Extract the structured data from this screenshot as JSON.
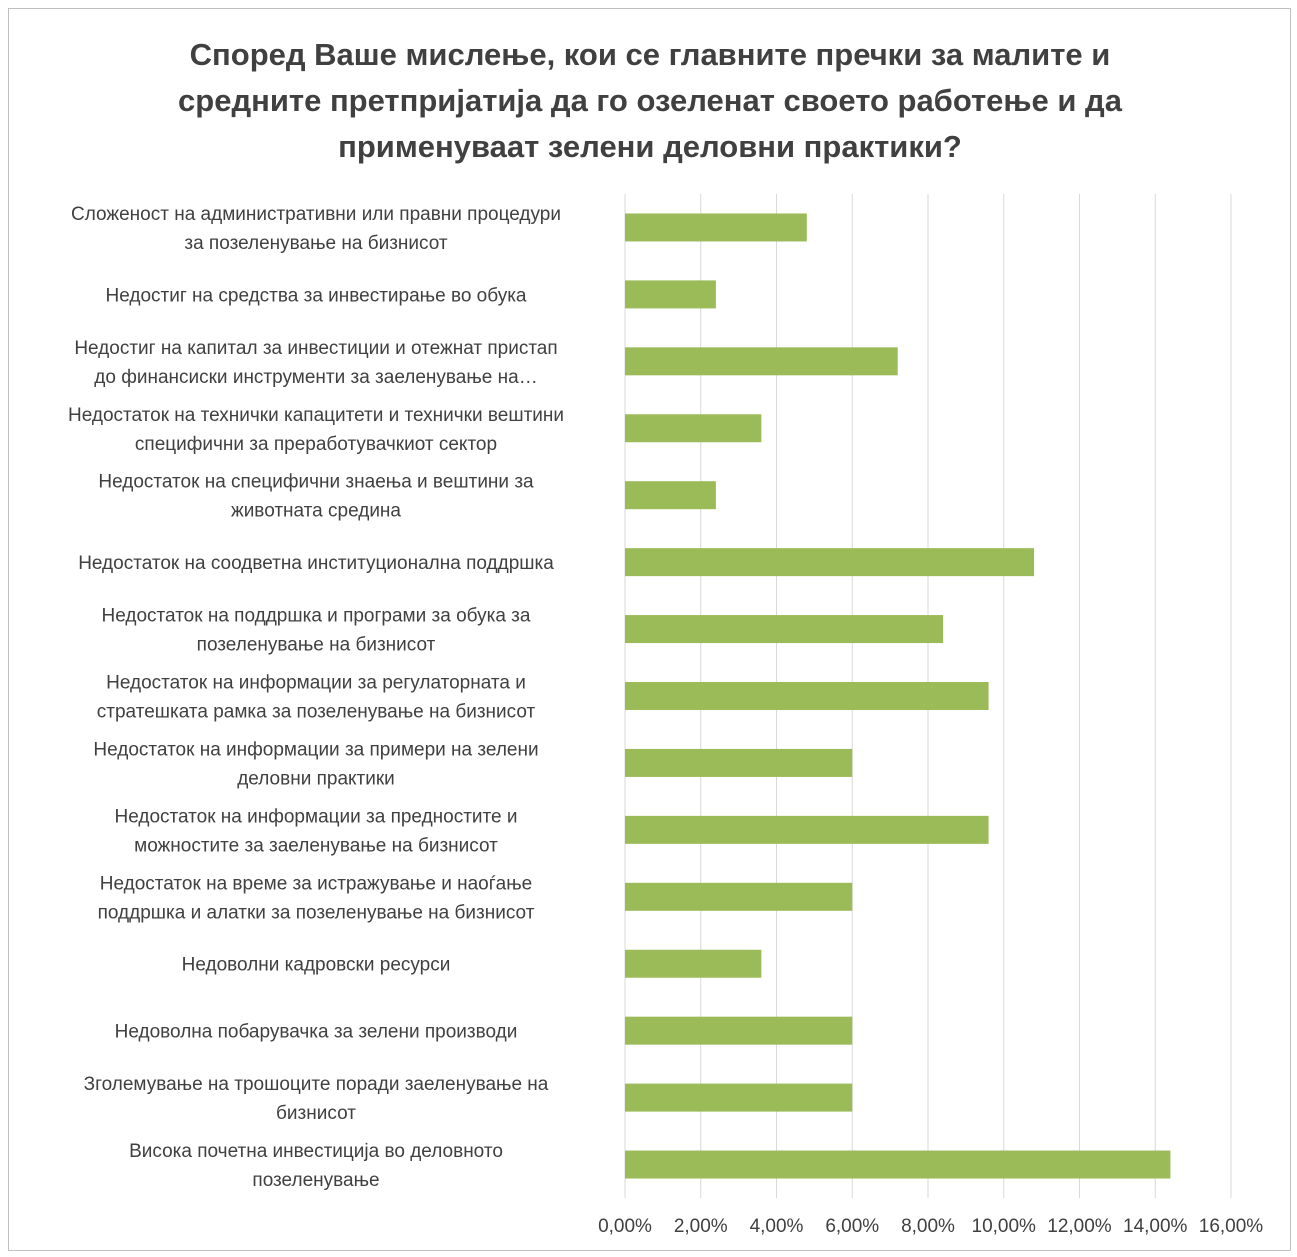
{
  "chart_data": {
    "type": "bar",
    "orientation": "horizontal",
    "title": "Според Ваше мислење, кои се главните пречки за малите и средните претпријатија да го озеленат своето работење и да применуваат зелени деловни практики?",
    "categories": [
      [
        "Сложеност на административни или правни процедури",
        "за позеленување на бизнисот"
      ],
      [
        "Недостиг на средства за инвестирање во обука"
      ],
      [
        "Недостиг на капитал за инвестиции и отежнат пристап",
        "до финансиски инструменти за заеленување на…"
      ],
      [
        "Недостаток на технички капацитети и технички вештини",
        "специфични за преработувачкиот сектор"
      ],
      [
        "Недостаток на специфични знаења и вештини за",
        "животната средина"
      ],
      [
        "Недостаток на соодветна институционална поддршка"
      ],
      [
        "Недостаток на поддршка и програми за обука за",
        "позеленување на бизнисот"
      ],
      [
        "Недостаток на информации за регулаторната и",
        "стратешката рамка за позеленување на бизнисот"
      ],
      [
        "Недостаток на информации за примери на зелени",
        "деловни практики"
      ],
      [
        "Недостаток на информации за предностите и",
        "можностите за заеленување на бизнисот"
      ],
      [
        "Недостаток на време за истражување и наоѓање",
        "поддршка и алатки за позеленување на бизнисот"
      ],
      [
        "Недоволни кадровски ресурси"
      ],
      [
        "Недоволна побарувачка за зелени производи"
      ],
      [
        "Зголемување на трошоците поради заеленување на",
        "бизнисот"
      ],
      [
        "Висока почетна инвестиција во деловното",
        "позеленување"
      ]
    ],
    "values": [
      4.8,
      2.4,
      7.2,
      3.6,
      2.4,
      10.8,
      8.4,
      9.6,
      6.0,
      9.6,
      6.0,
      3.6,
      6.0,
      6.0,
      14.4
    ],
    "xlim": [
      0,
      16
    ],
    "xticks": [
      "0,00%",
      "2,00%",
      "4,00%",
      "6,00%",
      "8,00%",
      "10,00%",
      "12,00%",
      "14,00%",
      "16,00%"
    ],
    "xlabel": "",
    "ylabel": "",
    "grid": "vertical",
    "legend": "none",
    "bar_color": "#9BBB59",
    "grid_color": "#d9d9d9"
  }
}
